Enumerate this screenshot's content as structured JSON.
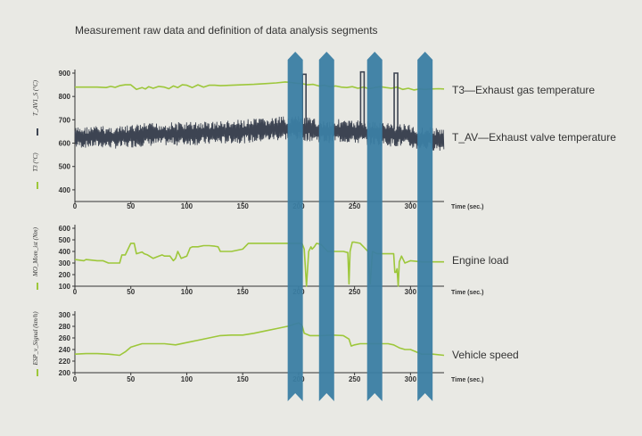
{
  "title": "Measurement raw data and definition of data analysis segments",
  "colors": {
    "background": "#e9e9e4",
    "green_series": "#9dc73a",
    "dark_series": "#3d4452",
    "segment_bar": "#3b7ea3",
    "axis": "#333333"
  },
  "chart_data": [
    {
      "type": "line",
      "panel": "top",
      "ylabels": [
        {
          "text": "T_AV1_S (°C)",
          "color": "#3d4452"
        },
        {
          "text": "T3 (°C)",
          "color": "#9dc73a"
        }
      ],
      "xlabel": "Time (sec.)",
      "xlim": [
        0,
        330
      ],
      "ylim": [
        350,
        900
      ],
      "xticks": [
        0,
        50,
        100,
        150,
        200,
        250,
        300
      ],
      "yticks": [
        400,
        500,
        600,
        700,
        800,
        900
      ],
      "annotations": [
        "T3—Exhaust gas temperature",
        "T_AV—Exhaust valve temperature"
      ],
      "series": [
        {
          "name": "T3",
          "color": "#9dc73a",
          "x": [
            0,
            10,
            20,
            28,
            32,
            36,
            40,
            45,
            50,
            55,
            60,
            63,
            66,
            70,
            75,
            80,
            84,
            88,
            92,
            96,
            100,
            105,
            110,
            115,
            120,
            125,
            130,
            140,
            150,
            160,
            170,
            180,
            188,
            193,
            198,
            203,
            208,
            213,
            218,
            223,
            228,
            233,
            238,
            243,
            248,
            253,
            258,
            263,
            268,
            273,
            278,
            283,
            288,
            293,
            298,
            303,
            308,
            313,
            318,
            325,
            330
          ],
          "y": [
            840,
            840,
            840,
            838,
            843,
            839,
            846,
            850,
            850,
            830,
            838,
            832,
            842,
            835,
            843,
            840,
            833,
            845,
            838,
            850,
            848,
            838,
            850,
            840,
            848,
            848,
            846,
            848,
            850,
            852,
            855,
            858,
            862,
            860,
            857,
            855,
            850,
            852,
            845,
            848,
            842,
            845,
            840,
            838,
            842,
            835,
            840,
            833,
            838,
            842,
            838,
            835,
            840,
            830,
            835,
            828,
            832,
            830,
            832,
            833,
            832
          ]
        },
        {
          "name": "T_AV",
          "color": "#3d4452",
          "envelope": {
            "x": [
              0,
              20,
              40,
              60,
              80,
              100,
              120,
              140,
              160,
              180,
              195,
              205,
              215,
              225,
              235,
              245,
              255,
              265,
              275,
              285,
              295,
              305,
              315,
              330
            ],
            "high": [
              668,
              675,
              672,
              685,
              690,
              692,
              695,
              698,
              705,
              712,
              718,
              712,
              705,
              700,
              705,
              698,
              700,
              695,
              690,
              688,
              685,
              670,
              670,
              665
            ],
            "low": [
              578,
              580,
              575,
              585,
              588,
              590,
              592,
              598,
              600,
              610,
              615,
              610,
              605,
              600,
              602,
              600,
              595,
              590,
              588,
              585,
              582,
              572,
              570,
              565
            ]
          },
          "spikes": [
            {
              "x": 205,
              "y": 895
            },
            {
              "x": 257,
              "y": 905
            },
            {
              "x": 287,
              "y": 900
            }
          ]
        }
      ]
    },
    {
      "type": "line",
      "panel": "middle",
      "ylabel": "MO_Mom_ist (Nm)",
      "xlabel": "Time (sec.)",
      "xlim": [
        0,
        330
      ],
      "ylim": [
        100,
        600
      ],
      "xticks": [
        0,
        50,
        100,
        150,
        200,
        250,
        300
      ],
      "yticks": [
        100,
        200,
        300,
        400,
        500,
        600
      ],
      "annotations": [
        "Engine load"
      ],
      "series": [
        {
          "name": "Engine load",
          "color": "#9dc73a",
          "x": [
            0,
            8,
            10,
            20,
            25,
            30,
            32,
            40,
            42,
            45,
            50,
            53,
            55,
            60,
            62,
            65,
            70,
            75,
            78,
            80,
            85,
            88,
            90,
            92,
            95,
            100,
            103,
            105,
            110,
            115,
            120,
            125,
            128,
            130,
            140,
            150,
            155,
            160,
            170,
            180,
            190,
            200,
            203,
            205,
            207,
            209,
            211,
            212,
            214,
            216,
            220,
            226,
            228,
            232,
            236,
            240,
            244,
            245,
            246,
            248,
            250,
            255,
            258,
            262,
            264,
            266,
            270,
            275,
            280,
            282,
            285,
            286,
            287,
            288,
            289,
            290,
            292,
            295,
            300,
            310,
            320,
            330
          ],
          "y": [
            330,
            320,
            330,
            320,
            320,
            300,
            300,
            300,
            370,
            370,
            470,
            470,
            380,
            395,
            380,
            370,
            340,
            360,
            370,
            360,
            360,
            320,
            340,
            400,
            340,
            360,
            430,
            440,
            440,
            450,
            450,
            445,
            440,
            400,
            400,
            420,
            470,
            470,
            470,
            470,
            470,
            470,
            470,
            420,
            100,
            400,
            440,
            420,
            440,
            470,
            460,
            400,
            400,
            400,
            400,
            400,
            390,
            120,
            400,
            480,
            480,
            470,
            440,
            400,
            120,
            400,
            380,
            380,
            380,
            380,
            380,
            220,
            220,
            250,
            100,
            310,
            360,
            300,
            320,
            310,
            310,
            310
          ]
        }
      ]
    },
    {
      "type": "line",
      "panel": "bottom",
      "ylabel": "ESP_v_Signal (km/h)",
      "xlabel": "Time (sec.)",
      "xlim": [
        0,
        330
      ],
      "ylim": [
        200,
        300
      ],
      "xticks": [
        0,
        50,
        100,
        150,
        200,
        250,
        300
      ],
      "yticks": [
        200,
        220,
        240,
        260,
        280,
        300
      ],
      "annotations": [
        "Vehicle speed"
      ],
      "series": [
        {
          "name": "Vehicle speed",
          "color": "#9dc73a",
          "x": [
            0,
            10,
            20,
            30,
            40,
            45,
            50,
            55,
            60,
            70,
            80,
            90,
            100,
            110,
            120,
            130,
            140,
            150,
            160,
            170,
            180,
            190,
            195,
            200,
            203,
            205,
            210,
            220,
            230,
            240,
            245,
            247,
            250,
            255,
            260,
            270,
            280,
            285,
            290,
            295,
            300,
            310,
            320,
            330
          ],
          "y": [
            232,
            233,
            233,
            232,
            230,
            236,
            244,
            247,
            250,
            250,
            250,
            248,
            252,
            256,
            260,
            264,
            265,
            265,
            268,
            272,
            276,
            280,
            283,
            286,
            282,
            268,
            264,
            264,
            265,
            264,
            258,
            246,
            248,
            250,
            250,
            250,
            250,
            248,
            243,
            240,
            240,
            232,
            232,
            230
          ]
        }
      ]
    }
  ],
  "segments": [
    {
      "x": 197
    },
    {
      "x": 225
    },
    {
      "x": 268
    },
    {
      "x": 313
    }
  ]
}
